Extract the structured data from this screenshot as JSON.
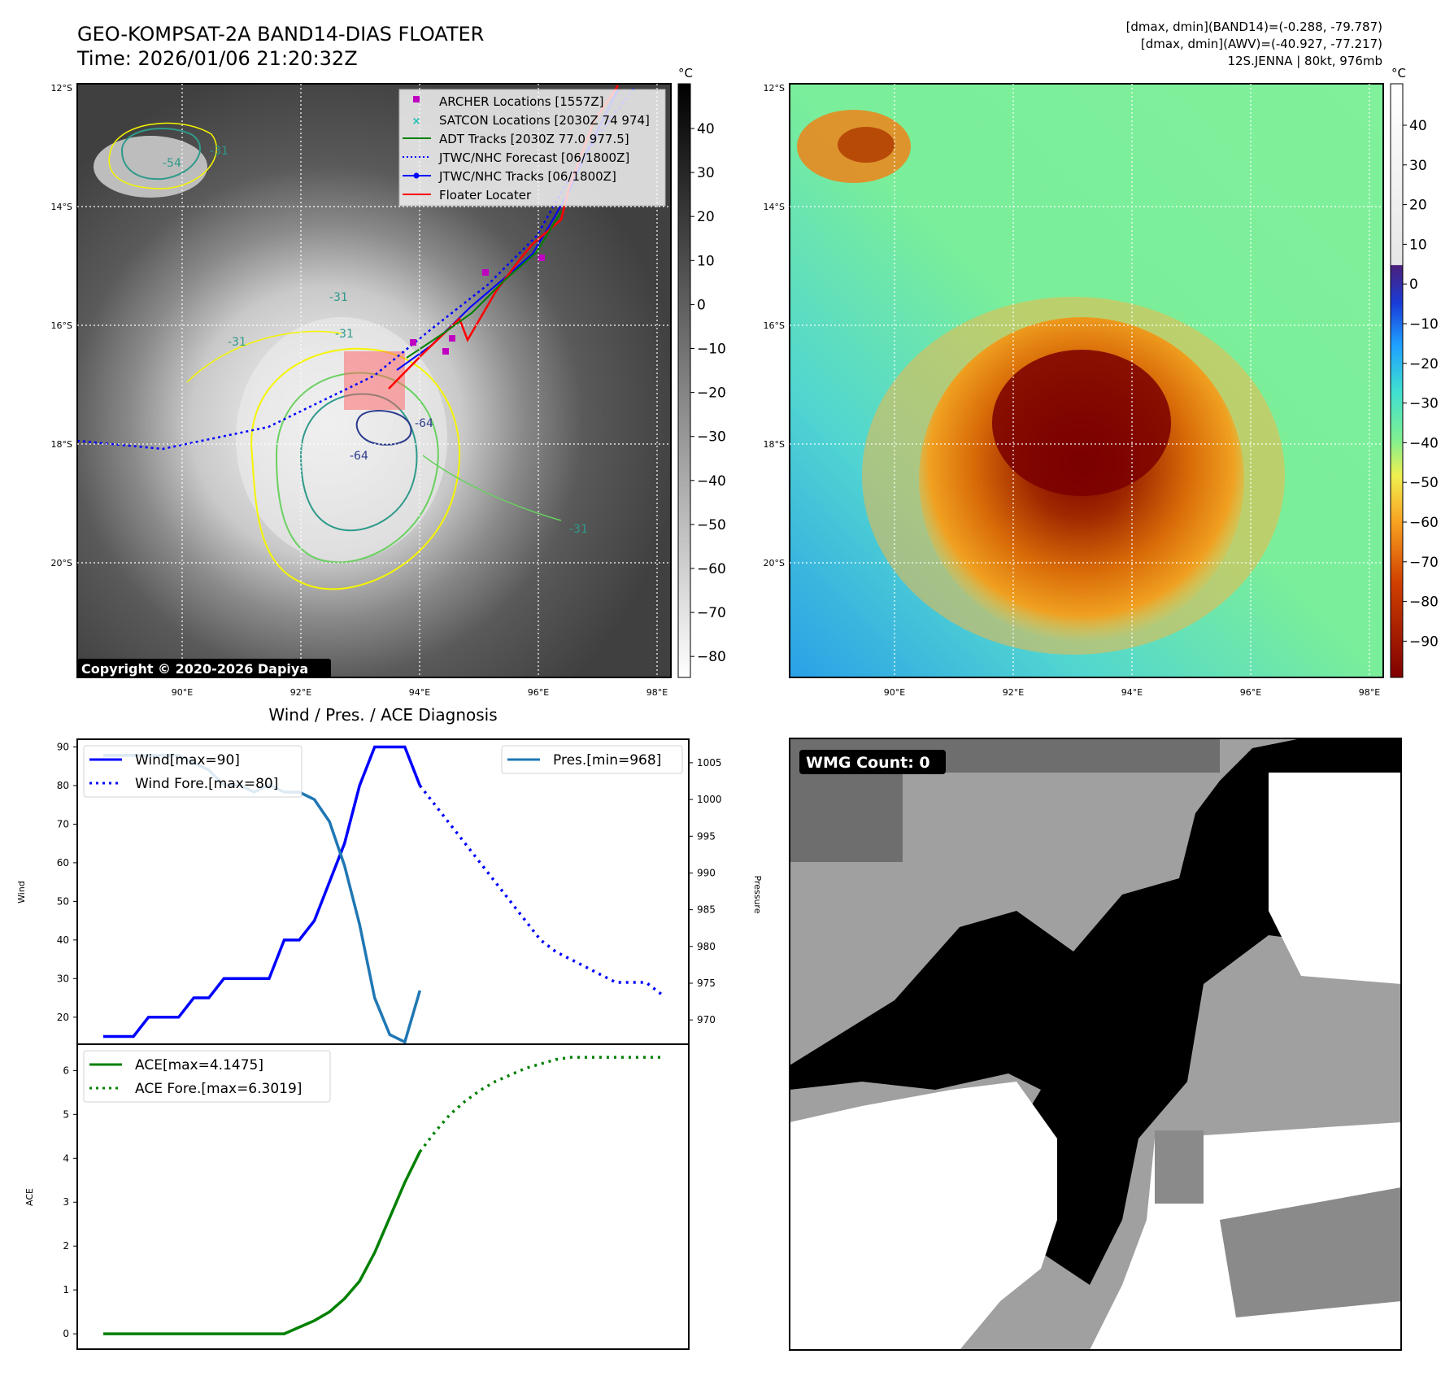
{
  "header": {
    "title_line1": "GEO-KOMPSAT-2A BAND14-DIAS FLOATER",
    "title_line2": "Time: 2026/01/06 21:20:32Z",
    "info_line1": "[dmax, dmin](BAND14)=(-0.288, -79.787)",
    "info_line2": "[dmax, dmin](AWV)=(-40.927, -77.217)",
    "info_line3": "12S.JENNA | 80kt, 976mb"
  },
  "copyright": "Copyright © 2020-2026 Dapiya",
  "map": {
    "lat_labels": [
      "12°S",
      "14°S",
      "16°S",
      "18°S",
      "20°S"
    ],
    "lon_labels": [
      "90°E",
      "92°E",
      "94°E",
      "96°E",
      "98°E"
    ],
    "contour_labels": [
      "-54",
      "-31",
      "-31",
      "-31",
      "-31",
      "-64",
      "-64",
      "-31"
    ],
    "legend": [
      {
        "label": "ARCHER Locations [1557Z]",
        "color": "#c000c0"
      },
      {
        "label": "SATCON Locations [2030Z 74 974]",
        "color": "#20c0b0"
      },
      {
        "label": "ADT Tracks [2030Z 77.0 977.5]",
        "color": "#008000"
      },
      {
        "label": "JTWC/NHC Forecast [06/1800Z]",
        "color": "#0000ff"
      },
      {
        "label": "JTWC/NHC Tracks [06/1800Z]",
        "color": "#0000ff"
      },
      {
        "label": "Floater Locater",
        "color": "#ff0000"
      }
    ]
  },
  "colorbar_gray": {
    "unit": "°C",
    "ticks": [
      "40",
      "30",
      "20",
      "10",
      "0",
      "−10",
      "−20",
      "−30",
      "−40",
      "−50",
      "−60",
      "−70",
      "−80"
    ]
  },
  "colorbar_awv": {
    "unit": "°C",
    "ticks": [
      "40",
      "30",
      "20",
      "10",
      "0",
      "−10",
      "−20",
      "−30",
      "−40",
      "−50",
      "−60",
      "−70",
      "−80",
      "−90"
    ]
  },
  "diag": {
    "title": "Wind / Pres. / ACE Diagnosis",
    "wind_ylabel": "Wind",
    "pres_ylabel": "Pressure",
    "ace_ylabel": "ACE"
  },
  "wmg": {
    "label": "WMG Count: 0"
  },
  "colors": {
    "wind": "#0000ff",
    "pressure": "#1f77b4",
    "ace": "#008000",
    "track": "#ff0000"
  },
  "chart_data": [
    {
      "type": "line",
      "title": "Wind / Pres. / ACE Diagnosis",
      "ylabel": "Wind",
      "ylim": [
        13,
        92
      ],
      "yticks": [
        20,
        30,
        40,
        50,
        60,
        70,
        80,
        90
      ],
      "series": [
        {
          "name": "Wind[max=90]",
          "style": "solid",
          "x": [
            0,
            1,
            2,
            3,
            4,
            5,
            6,
            7,
            8,
            9,
            10,
            11,
            12,
            13,
            14,
            15,
            16,
            17,
            18,
            19,
            20,
            21
          ],
          "values": [
            15,
            15,
            15,
            20,
            20,
            20,
            25,
            25,
            30,
            30,
            30,
            30,
            40,
            40,
            45,
            55,
            65,
            80,
            90,
            90,
            90,
            80
          ]
        },
        {
          "name": "Wind Fore.[max=80]",
          "style": "dotted",
          "x": [
            21,
            22,
            23,
            24,
            25,
            26,
            27,
            28,
            29,
            30,
            31,
            32,
            33,
            34,
            35,
            36,
            37
          ],
          "values": [
            80,
            75,
            70,
            65,
            60,
            55,
            50,
            45,
            40,
            37,
            35,
            33,
            31,
            29,
            29,
            29,
            26
          ]
        }
      ],
      "legend": [
        "Wind[max=90]",
        "Wind Fore.[max=80]"
      ]
    },
    {
      "type": "line",
      "ylabel": "Pressure",
      "ylim": [
        966.7,
        1008.2
      ],
      "yticks": [
        970,
        975,
        980,
        985,
        990,
        995,
        1000,
        1005
      ],
      "series": [
        {
          "name": "Pres.[min=968]",
          "x": [
            0,
            1,
            2,
            3,
            4,
            5,
            6,
            7,
            8,
            9,
            10,
            11,
            12,
            13,
            14,
            15,
            16,
            17,
            18,
            19,
            20,
            21
          ],
          "values": [
            1006,
            1006,
            1006,
            1006,
            1006,
            1006,
            1005,
            1004,
            1002,
            1002,
            1001,
            1002,
            1001,
            1001,
            1000,
            997,
            991,
            983,
            973,
            968,
            967,
            974
          ]
        }
      ],
      "legend": [
        "Pres.[min=968]"
      ]
    },
    {
      "type": "line",
      "ylabel": "ACE",
      "ylim": [
        -0.35,
        6.6
      ],
      "yticks": [
        0,
        1,
        2,
        3,
        4,
        5,
        6
      ],
      "series": [
        {
          "name": "ACE[max=4.1475]",
          "style": "solid",
          "x": [
            0,
            1,
            2,
            3,
            4,
            5,
            6,
            7,
            8,
            9,
            10,
            11,
            12,
            13,
            14,
            15,
            16,
            17,
            18,
            19,
            20,
            21
          ],
          "values": [
            0,
            0,
            0,
            0,
            0,
            0,
            0,
            0,
            0,
            0,
            0,
            0,
            0,
            0.15,
            0.3,
            0.5,
            0.8,
            1.2,
            1.85,
            2.65,
            3.45,
            4.15
          ]
        },
        {
          "name": "ACE Fore.[max=6.3019]",
          "style": "dotted",
          "x": [
            21,
            22,
            23,
            24,
            25,
            26,
            27,
            28,
            29,
            30,
            31,
            32,
            33,
            34,
            35,
            36,
            37
          ],
          "values": [
            4.15,
            4.6,
            5.0,
            5.3,
            5.55,
            5.75,
            5.9,
            6.05,
            6.15,
            6.25,
            6.3,
            6.3,
            6.3,
            6.3,
            6.3,
            6.3,
            6.3
          ]
        }
      ],
      "legend": [
        "ACE[max=4.1475]",
        "ACE Fore.[max=6.3019]"
      ]
    }
  ]
}
